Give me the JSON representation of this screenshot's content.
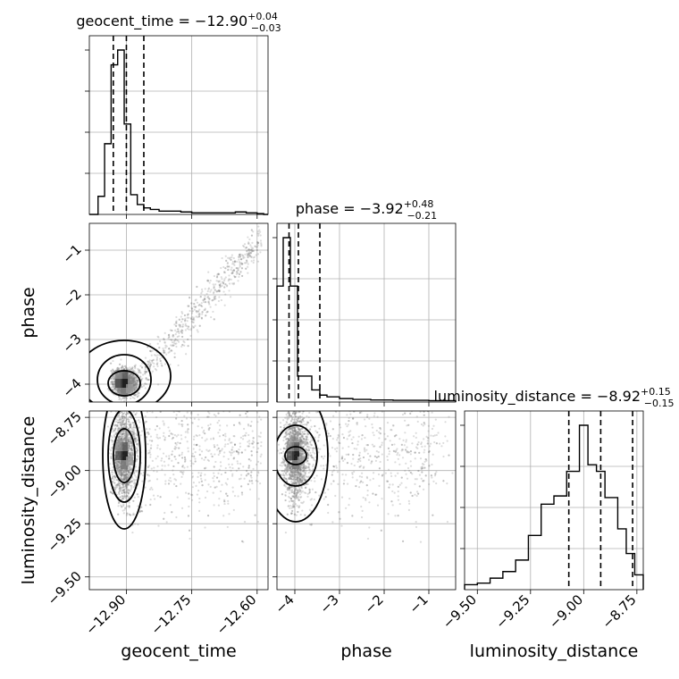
{
  "chart_data": {
    "type": "corner",
    "parameters": [
      "geocent_time",
      "phase",
      "luminosity_distance"
    ],
    "axis_labels": [
      "geocent_time",
      "phase",
      "luminosity_distance"
    ],
    "ranges": {
      "geocent_time": [
        -12.985,
        -12.575
      ],
      "phase": [
        -4.4,
        -0.4
      ],
      "luminosity_distance": [
        -9.56,
        -8.72
      ]
    },
    "ticks": {
      "geocent_time": {
        "values": [
          -12.9,
          -12.75,
          -12.6
        ],
        "labels": [
          "−12.90",
          "−12.75",
          "−12.60"
        ]
      },
      "phase": {
        "values": [
          -4,
          -3,
          -2,
          -1
        ],
        "labels": [
          "−4",
          "−3",
          "−2",
          "−1"
        ]
      },
      "luminosity_distance": {
        "values": [
          -9.5,
          -9.25,
          -9.0,
          -8.75
        ],
        "labels": [
          "−9.50",
          "−9.25",
          "−9.00",
          "−8.75"
        ]
      }
    },
    "titles": [
      {
        "param": "geocent_time",
        "base": "geocent_time = −12.90",
        "sup": "+0.04",
        "sub": "−0.03"
      },
      {
        "param": "phase",
        "base": "phase = −3.92",
        "sup": "+0.48",
        "sub": "−0.21"
      },
      {
        "param": "luminosity_distance",
        "base": "luminosity_distance = −8.92",
        "sup": "+0.15",
        "sub": "−0.15"
      }
    ],
    "quantiles": {
      "geocent_time": [
        -12.93,
        -12.9,
        -12.86
      ],
      "phase": [
        -4.13,
        -3.92,
        -3.44
      ],
      "luminosity_distance": [
        -9.07,
        -8.92,
        -8.77
      ]
    },
    "histograms": {
      "geocent_time": {
        "edges": [
          -12.985,
          -12.965,
          -12.95,
          -12.935,
          -12.92,
          -12.905,
          -12.89,
          -12.875,
          -12.86,
          -12.845,
          -12.825,
          -12.8,
          -12.775,
          -12.75,
          -12.725,
          -12.7,
          -12.675,
          -12.65,
          -12.625,
          -12.6,
          -12.585,
          -12.575
        ],
        "counts": [
          0,
          0.11,
          0.43,
          0.91,
          1.0,
          0.55,
          0.12,
          0.06,
          0.04,
          0.03,
          0.02,
          0.02,
          0.015,
          0.01,
          0.01,
          0.01,
          0.01,
          0.015,
          0.01,
          0.005,
          0
        ]
      },
      "phase": {
        "edges": [
          -4.4,
          -4.26,
          -4.1,
          -3.94,
          -3.62,
          -3.44,
          -3.28,
          -3.0,
          -2.7,
          -2.3,
          -1.8,
          -1.4,
          -1.0,
          -0.7,
          -0.4
        ],
        "counts": [
          0.67,
          0.95,
          0.67,
          0.15,
          0.07,
          0.04,
          0.03,
          0.02,
          0.015,
          0.012,
          0.01,
          0.01,
          0.008,
          0.008
        ]
      },
      "luminosity_distance": {
        "edges": [
          -9.56,
          -9.5,
          -9.44,
          -9.38,
          -9.32,
          -9.26,
          -9.2,
          -9.14,
          -9.08,
          -9.02,
          -8.98,
          -8.94,
          -8.9,
          -8.84,
          -8.8,
          -8.76,
          -8.72
        ],
        "counts": [
          0.03,
          0.04,
          0.07,
          0.11,
          0.18,
          0.33,
          0.52,
          0.57,
          0.72,
          1.0,
          0.76,
          0.72,
          0.56,
          0.37,
          0.22,
          0.09
        ]
      }
    },
    "scatter_description": "grey posterior samples with black credible-interval contours; 2D panels: phase vs geocent_time, luminosity_distance vs geocent_time, luminosity_distance vs phase",
    "grid": true,
    "colors": {
      "line": "#000000",
      "grid": "#b0b0b0",
      "samples": "#808080"
    }
  }
}
